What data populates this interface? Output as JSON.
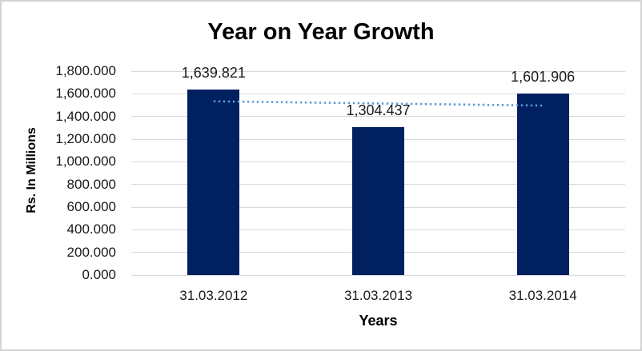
{
  "chart": {
    "title": "Year on Year Growth"
  },
  "chart_data": {
    "type": "bar",
    "title": "Year on Year Growth",
    "xlabel": "Years",
    "ylabel": "Rs. In Millions",
    "categories": [
      "31.03.2012",
      "31.03.2013",
      "31.03.2014"
    ],
    "values": [
      1639.821,
      1304.437,
      1601.906
    ],
    "data_labels": [
      "1,639.821",
      "1,304.437",
      "1,601.906"
    ],
    "y_tick_values": [
      1800,
      1600,
      1400,
      1200,
      1000,
      800,
      600,
      400,
      200,
      0
    ],
    "y_tick_labels": [
      "1,800.000",
      "1,600.000",
      "1,400.000",
      "1,200.000",
      "1,000.000",
      "800.000",
      "600.000",
      "400.000",
      "200.000",
      "0.000"
    ],
    "ylim": [
      0,
      1800
    ],
    "grid": true,
    "legend": "none",
    "colors": {
      "bar": "#002060",
      "trendline": "#5b9bd5",
      "gridline": "#d9d9d9",
      "text": "#1a1a1a",
      "border": "#d3d3d3"
    },
    "trendline": {
      "type": "linear",
      "style": "dotted",
      "start_value": 1534,
      "end_value": 1496
    }
  }
}
